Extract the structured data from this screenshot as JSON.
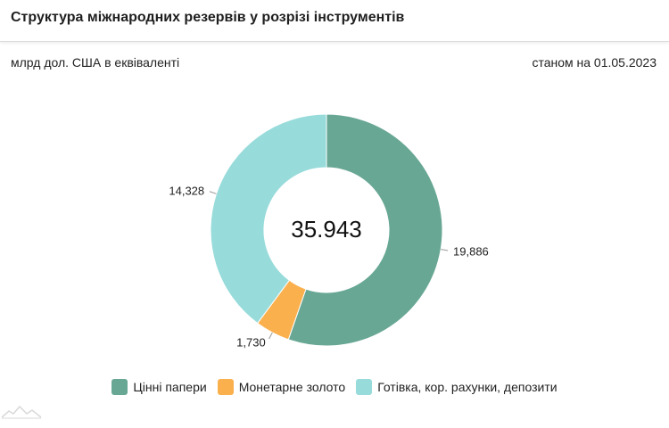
{
  "header": {
    "title": "Структура міжнародних резервів у розрізі інструментів"
  },
  "subtitle": {
    "unit": "млрд дол. США в еквіваленті",
    "as_of": "станом на 01.05.2023"
  },
  "chart_data": {
    "type": "pie",
    "donut": true,
    "center_label": "35.943",
    "categories": [
      "Цінні папери",
      "Монетарне золото",
      "Готівка, кор. рахунки, депозити"
    ],
    "values": [
      19.886,
      1.73,
      14.328
    ],
    "value_labels": [
      "19,886",
      "1,730",
      "14,328"
    ],
    "colors": [
      "#68a794",
      "#fbb04e",
      "#98dbdb"
    ],
    "legend_position": "bottom"
  }
}
